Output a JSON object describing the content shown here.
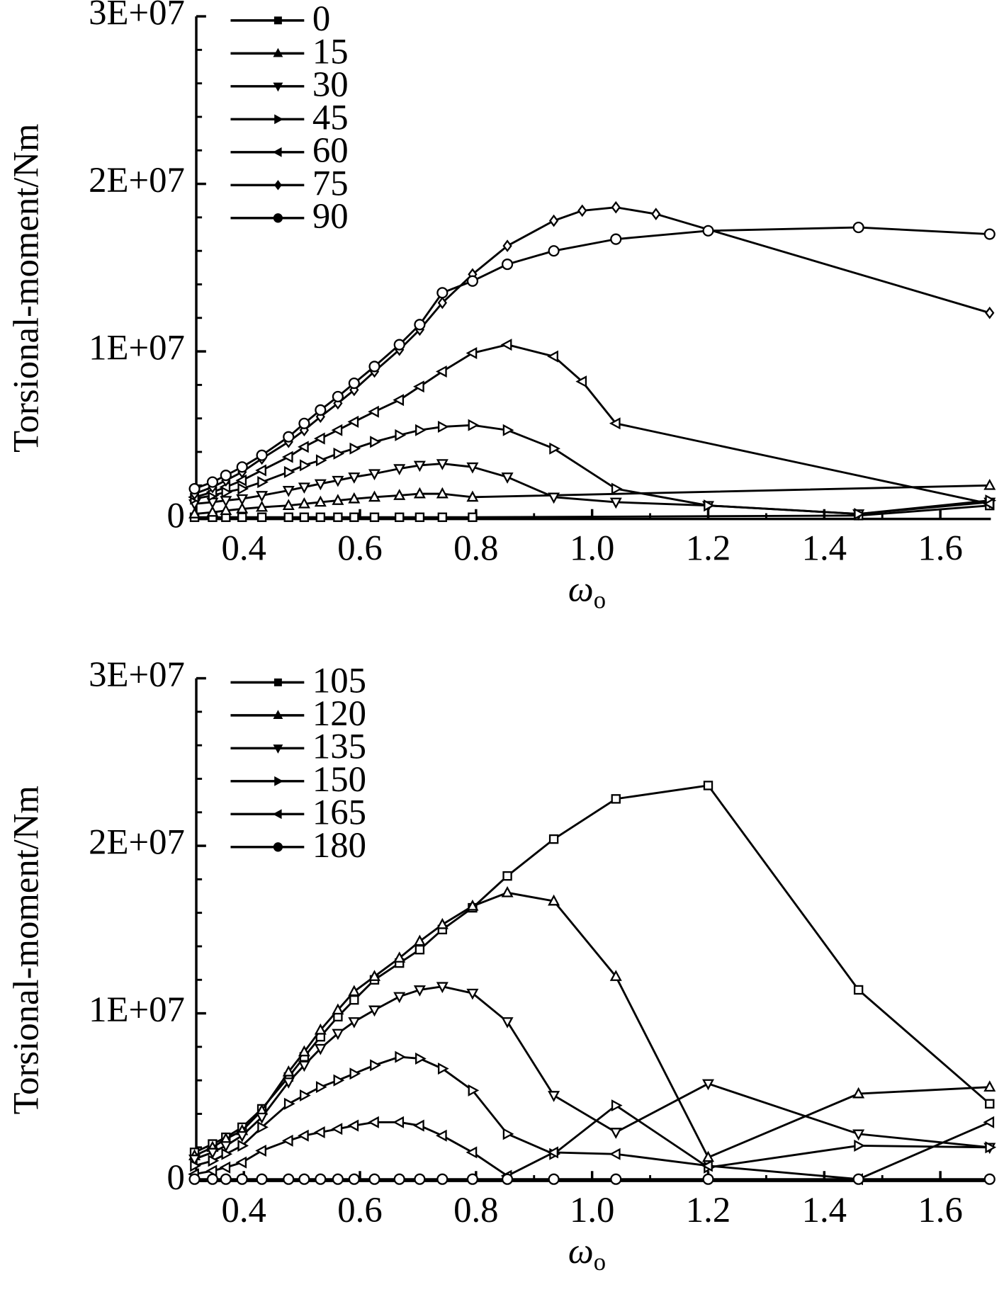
{
  "chart_data": [
    {
      "type": "line",
      "ylabel": "Torsional-moment/Nm",
      "xlabel": "ω",
      "xlabel_sub": "o",
      "xlim": [
        0.318,
        1.687
      ],
      "ylim": [
        0,
        30000000.0
      ],
      "xticks": [
        0.4,
        0.6,
        0.8,
        {
          "value": 1,
          "label": "1.0"
        },
        1.2,
        1.4,
        1.6
      ],
      "xminor": [
        0.5,
        0.7,
        0.9,
        1.1,
        1.3,
        1.5
      ],
      "yticks": [
        {
          "value": 0,
          "label": "0"
        },
        {
          "value": 10000000.0,
          "label": "1E+07"
        },
        {
          "value": 20000000.0,
          "label": "2E+07"
        },
        {
          "value": 30000000.0,
          "label": "3E+07"
        }
      ],
      "yminor": [
        2000000.0,
        4000000.0,
        6000000.0,
        8000000.0,
        12000000.0,
        14000000.0,
        16000000.0,
        18000000.0,
        22000000.0,
        24000000.0,
        26000000.0,
        28000000.0
      ],
      "legend": "upper left",
      "color": "#000000",
      "x": [
        0.315,
        0.346,
        0.369,
        0.397,
        0.431,
        0.477,
        0.504,
        0.532,
        0.562,
        0.59,
        0.625,
        0.668,
        0.703,
        0.742,
        0.794,
        0.854,
        0.934,
        1.041,
        1.2,
        1.459,
        1.685
      ],
      "series": [
        {
          "name": "0",
          "marker": "square",
          "x": [
            0.315,
            0.346,
            0.369,
            0.397,
            0.431,
            0.477,
            0.504,
            0.532,
            0.562,
            0.59,
            0.625,
            0.668,
            0.703,
            0.742,
            0.794,
            1.459,
            1.685
          ],
          "values": [
            100000.0,
            100000.0,
            100000.0,
            100000.0,
            100000.0,
            100000.0,
            100000.0,
            100000.0,
            100000.0,
            100000.0,
            100000.0,
            100000.0,
            100000.0,
            100000.0,
            100000.0,
            200000.0,
            800000.0
          ]
        },
        {
          "name": "15",
          "marker": "triangle-up",
          "x": [
            0.315,
            0.346,
            0.369,
            0.397,
            0.431,
            0.477,
            0.504,
            0.532,
            0.562,
            0.59,
            0.625,
            0.668,
            0.703,
            0.742,
            0.794,
            1.685
          ],
          "values": [
            300000.0,
            400000.0,
            500000.0,
            600000.0,
            700000.0,
            800000.0,
            900000.0,
            1000000.0,
            1100000.0,
            1200000.0,
            1300000.0,
            1400000.0,
            1500000.0,
            1500000.0,
            1300000.0,
            2000000.0
          ]
        },
        {
          "name": "30",
          "marker": "triangle-down",
          "values": [
            900000.0,
            1000000.0,
            1100000.0,
            1200000.0,
            1400000.0,
            1700000.0,
            1900000.0,
            2100000.0,
            2300000.0,
            2500000.0,
            2700000.0,
            3000000.0,
            3200000.0,
            3300000.0,
            3100000.0,
            2500000.0,
            1300000.0,
            1000000.0,
            800000.0,
            300000.0,
            1000000.0
          ]
        },
        {
          "name": "45",
          "marker": "triangle-right",
          "values": [
            1200000.0,
            1400000.0,
            1600000.0,
            1800000.0,
            2200000.0,
            2800000.0,
            3200000.0,
            3500000.0,
            3900000.0,
            4200000.0,
            4600000.0,
            5000000.0,
            5300000.0,
            5500000.0,
            5600000.0,
            5300000.0,
            4200000.0,
            1800000.0,
            800000.0,
            300000.0,
            1100000.0
          ]
        },
        {
          "name": "60",
          "marker": "triangle-left",
          "x": [
            0.315,
            0.346,
            0.369,
            0.397,
            0.431,
            0.477,
            0.504,
            0.532,
            0.562,
            0.59,
            0.625,
            0.668,
            0.703,
            0.742,
            0.794,
            0.854,
            0.934,
            0.983,
            1.041,
            1.685
          ],
          "values": [
            1300000.0,
            1600000.0,
            1900000.0,
            2300000.0,
            2900000.0,
            3700000.0,
            4300000.0,
            4800000.0,
            5300000.0,
            5800000.0,
            6400000.0,
            7100000.0,
            7900000.0,
            8800000.0,
            9900000.0,
            10400000.0,
            9700000.0,
            8200000.0,
            5700000.0,
            900000.0
          ]
        },
        {
          "name": "75",
          "marker": "diamond",
          "x": [
            0.315,
            0.346,
            0.369,
            0.397,
            0.431,
            0.477,
            0.504,
            0.532,
            0.562,
            0.59,
            0.625,
            0.668,
            0.703,
            0.742,
            0.794,
            0.854,
            0.934,
            0.983,
            1.041,
            1.11,
            1.685
          ],
          "values": [
            1500000.0,
            1900000.0,
            2300000.0,
            2800000.0,
            3600000.0,
            4600000.0,
            5300000.0,
            6100000.0,
            6900000.0,
            7700000.0,
            8800000.0,
            10100000.0,
            11300000.0,
            12900000.0,
            14600000.0,
            16300000.0,
            17800000.0,
            18400000.0,
            18600000.0,
            18200000.0,
            12300000.0
          ]
        },
        {
          "name": "90",
          "marker": "circle",
          "values": [
            1800000.0,
            2200000.0,
            2600000.0,
            3100000.0,
            3800000.0,
            4900000.0,
            5700000.0,
            6500000.0,
            7300000.0,
            8100000.0,
            9100000.0,
            10400000.0,
            11600000.0,
            13500000.0,
            14200000.0,
            15200000.0,
            16000000.0,
            16700000.0,
            17200000.0,
            17400000.0,
            17000000.0
          ]
        }
      ]
    },
    {
      "type": "line",
      "ylabel": "Torsional-moment/Nm",
      "xlabel": "ω",
      "xlabel_sub": "o",
      "xlim": [
        0.318,
        1.687
      ],
      "ylim": [
        0,
        30000000.0
      ],
      "xticks": [
        0.4,
        0.6,
        0.8,
        {
          "value": 1,
          "label": "1.0"
        },
        1.2,
        1.4,
        1.6
      ],
      "xminor": [
        0.5,
        0.7,
        0.9,
        1.1,
        1.3,
        1.5
      ],
      "yticks": [
        {
          "value": 0,
          "label": "0"
        },
        {
          "value": 10000000.0,
          "label": "1E+07"
        },
        {
          "value": 20000000.0,
          "label": "2E+07"
        },
        {
          "value": 30000000.0,
          "label": "3E+07"
        }
      ],
      "yminor": [
        2000000.0,
        4000000.0,
        6000000.0,
        8000000.0,
        12000000.0,
        14000000.0,
        16000000.0,
        18000000.0,
        22000000.0,
        24000000.0,
        26000000.0,
        28000000.0
      ],
      "legend": "upper left",
      "color": "#000000",
      "x": [
        0.315,
        0.346,
        0.369,
        0.397,
        0.431,
        0.477,
        0.504,
        0.532,
        0.562,
        0.59,
        0.625,
        0.668,
        0.703,
        0.742,
        0.794,
        0.854,
        0.934,
        1.041,
        1.2,
        1.459,
        1.685
      ],
      "series": [
        {
          "name": "105",
          "marker": "square",
          "values": [
            1700000.0,
            2200000.0,
            2600000.0,
            3200000.0,
            4300000.0,
            6200000.0,
            7400000.0,
            8600000.0,
            9800000.0,
            10800000.0,
            12000000.0,
            13000000.0,
            13800000.0,
            15000000.0,
            16300000.0,
            18200000.0,
            20400000.0,
            22800000.0,
            23600000.0,
            11400000.0,
            4600000.0
          ]
        },
        {
          "name": "120",
          "marker": "triangle-up",
          "values": [
            1500000.0,
            2000000.0,
            2500000.0,
            3000000.0,
            4200000.0,
            6500000.0,
            7700000.0,
            9000000.0,
            10200000.0,
            11300000.0,
            12200000.0,
            13300000.0,
            14300000.0,
            15300000.0,
            16400000.0,
            17200000.0,
            16700000.0,
            12200000.0,
            1400000.0,
            5200000.0,
            5600000.0
          ]
        },
        {
          "name": "135",
          "marker": "triangle-down",
          "values": [
            1300000.0,
            1700000.0,
            2100000.0,
            2700000.0,
            3800000.0,
            5900000.0,
            6900000.0,
            7900000.0,
            8800000.0,
            9500000.0,
            10200000.0,
            11000000.0,
            11400000.0,
            11600000.0,
            11200000.0,
            9500000.0,
            5100000.0,
            2900000.0,
            5800000.0,
            2800000.0,
            2000000.0
          ]
        },
        {
          "name": "150",
          "marker": "triangle-right",
          "values": [
            900000.0,
            1200000.0,
            1600000.0,
            2100000.0,
            3200000.0,
            4600000.0,
            5100000.0,
            5600000.0,
            6000000.0,
            6400000.0,
            6900000.0,
            7400000.0,
            7300000.0,
            6700000.0,
            5400000.0,
            2800000.0,
            1600000.0,
            4500000.0,
            800000.0,
            2100000.0,
            2000000.0
          ]
        },
        {
          "name": "165",
          "marker": "triangle-left",
          "values": [
            400000.0,
            600000.0,
            800000.0,
            1100000.0,
            1800000.0,
            2400000.0,
            2700000.0,
            2900000.0,
            3100000.0,
            3300000.0,
            3500000.0,
            3500000.0,
            3300000.0,
            2700000.0,
            1700000.0,
            300000.0,
            1700000.0,
            1600000.0,
            900000.0,
            100000.0,
            3500000.0
          ]
        },
        {
          "name": "180",
          "marker": "circle",
          "values": [
            100000.0,
            100000.0,
            100000.0,
            100000.0,
            100000.0,
            100000.0,
            100000.0,
            100000.0,
            100000.0,
            100000.0,
            100000.0,
            100000.0,
            100000.0,
            100000.0,
            100000.0,
            100000.0,
            100000.0,
            100000.0,
            100000.0,
            100000.0,
            100000.0
          ]
        }
      ]
    }
  ]
}
